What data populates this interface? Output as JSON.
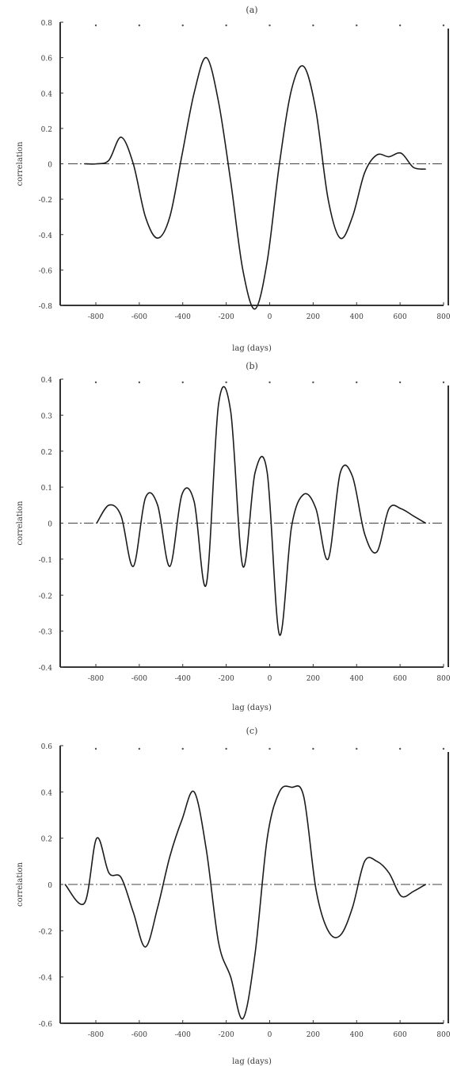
{
  "figure": {
    "panels": [
      {
        "panel_label": "(a)",
        "ylabel": "correlation",
        "xlabel": "lag (days)",
        "yticks": [
          "0.8",
          "0.6",
          "0.4",
          "0.2",
          "0",
          "-0.2",
          "-0.4",
          "-0.6",
          "-0.8"
        ],
        "xticks": [
          "-800",
          "-600",
          "-400",
          "-200",
          "0",
          "200",
          "400",
          "600",
          "800"
        ]
      },
      {
        "panel_label": "(b)",
        "ylabel": "correlation",
        "xlabel": "lag (days)",
        "yticks": [
          "0.4",
          "0.3",
          "0.2",
          "0.1",
          "0",
          "-0.1",
          "-0.2",
          "-0.3",
          "-0.4"
        ],
        "xticks": [
          "-800",
          "-600",
          "-400",
          "-200",
          "0",
          "200",
          "400",
          "600",
          "800"
        ]
      },
      {
        "panel_label": "(c)",
        "ylabel": "correlation",
        "xlabel": "lag (days)",
        "yticks": [
          "0.6",
          "0.4",
          "0.2",
          "0",
          "-0.2",
          "-0.4",
          "-0.6"
        ],
        "xticks": [
          "-800",
          "-600",
          "-400",
          "-200",
          "0",
          "200",
          "400",
          "600",
          "800"
        ]
      }
    ]
  },
  "chart_data": [
    {
      "type": "line",
      "title": "(a)",
      "xlabel": "lag (days)",
      "ylabel": "correlation",
      "xlim": [
        -800,
        800
      ],
      "ylim": [
        -0.8,
        0.8
      ],
      "grid": false,
      "series": [
        {
          "x": [
            -700,
            -650,
            -600,
            -550,
            -500,
            -450,
            -400,
            -350,
            -300,
            -250,
            -200,
            -150,
            -100,
            -50,
            0,
            50,
            100,
            150,
            200,
            250,
            300,
            350,
            400,
            450,
            500,
            550,
            600,
            650,
            700
          ],
          "values": [
            0.0,
            0.0,
            0.02,
            0.15,
            0.0,
            -0.3,
            -0.42,
            -0.3,
            0.05,
            0.4,
            0.6,
            0.35,
            -0.1,
            -0.6,
            -0.82,
            -0.55,
            0.0,
            0.42,
            0.55,
            0.3,
            -0.2,
            -0.42,
            -0.3,
            -0.05,
            0.05,
            0.04,
            0.06,
            -0.02,
            -0.03
          ]
        }
      ]
    },
    {
      "type": "line",
      "title": "(b)",
      "xlabel": "lag (days)",
      "ylabel": "correlation",
      "xlim": [
        -800,
        800
      ],
      "ylim": [
        -0.4,
        0.4
      ],
      "grid": false,
      "series": [
        {
          "x": [
            -650,
            -600,
            -550,
            -500,
            -450,
            -400,
            -350,
            -300,
            -250,
            -200,
            -150,
            -100,
            -50,
            0,
            50,
            100,
            150,
            200,
            250,
            300,
            350,
            400,
            450,
            500,
            550,
            600,
            650,
            700
          ],
          "values": [
            0.0,
            0.05,
            0.02,
            -0.12,
            0.07,
            0.05,
            -0.12,
            0.08,
            0.06,
            -0.17,
            0.33,
            0.31,
            -0.12,
            0.14,
            0.14,
            -0.31,
            -0.01,
            0.08,
            0.04,
            -0.1,
            0.14,
            0.13,
            -0.03,
            -0.08,
            0.04,
            0.04,
            0.02,
            0.0
          ]
        }
      ]
    },
    {
      "type": "line",
      "title": "(c)",
      "xlabel": "lag (days)",
      "ylabel": "correlation",
      "xlim": [
        -800,
        800
      ],
      "ylim": [
        -0.6,
        0.6
      ],
      "grid": false,
      "series": [
        {
          "x": [
            -780,
            -700,
            -650,
            -600,
            -550,
            -500,
            -450,
            -400,
            -350,
            -300,
            -250,
            -200,
            -150,
            -100,
            -50,
            0,
            50,
            100,
            150,
            200,
            250,
            300,
            350,
            400,
            450,
            500,
            550,
            600,
            650,
            700
          ],
          "values": [
            0.0,
            -0.08,
            0.2,
            0.05,
            0.03,
            -0.12,
            -0.27,
            -0.1,
            0.12,
            0.28,
            0.4,
            0.15,
            -0.25,
            -0.4,
            -0.58,
            -0.3,
            0.2,
            0.4,
            0.42,
            0.38,
            -0.02,
            -0.2,
            -0.22,
            -0.1,
            0.1,
            0.1,
            0.05,
            -0.05,
            -0.03,
            0.0
          ]
        }
      ]
    }
  ]
}
